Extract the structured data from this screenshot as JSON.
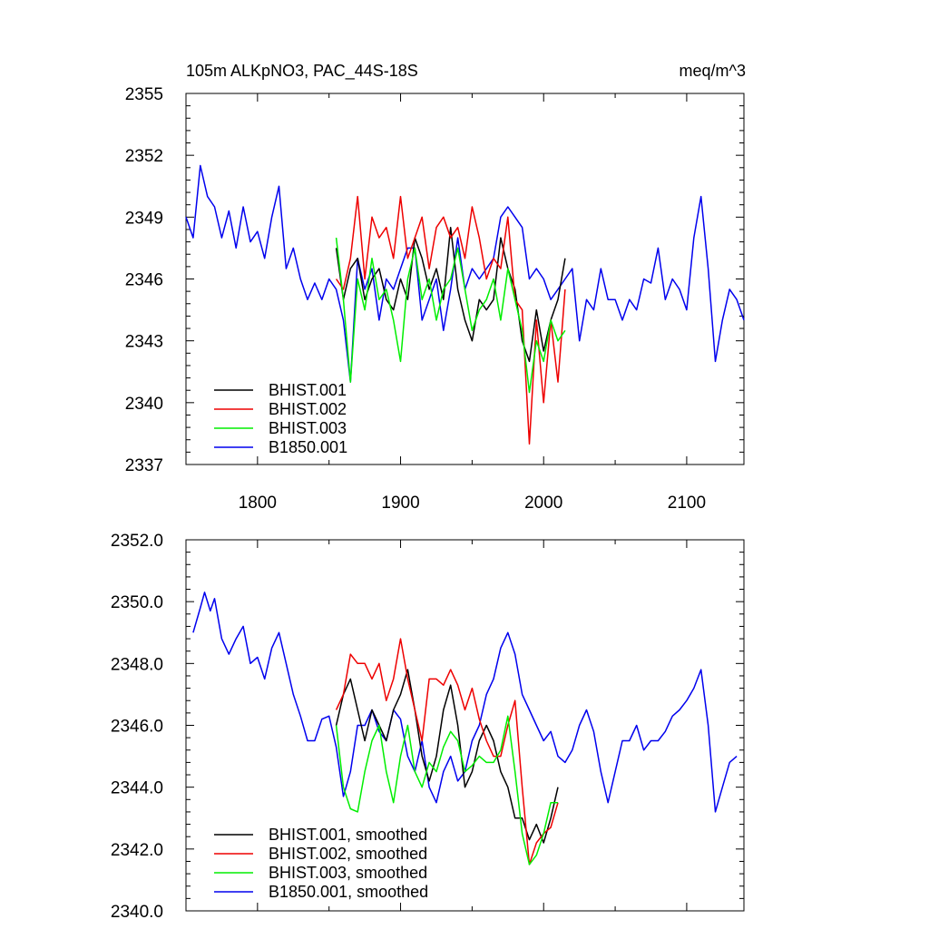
{
  "chart_data": [
    {
      "type": "line",
      "title_left": "105m ALKpNO3, PAC_44S-18S",
      "title_right": "meq/m^3",
      "xlabel": "",
      "ylabel": "",
      "xlim": [
        1750,
        2140
      ],
      "ylim": [
        2337,
        2355
      ],
      "xticks": [
        1800,
        1900,
        2000,
        2100
      ],
      "yticks": [
        2337,
        2340,
        2343,
        2346,
        2349,
        2352,
        2355
      ],
      "x_tick_labels_shown": true,
      "ytick_decimals": 0,
      "legend_position": "bottom-left",
      "series": [
        {
          "name": "B1850.001",
          "color": "#0000ee",
          "x": [
            1750,
            1755,
            1760,
            1765,
            1770,
            1775,
            1780,
            1785,
            1790,
            1795,
            1800,
            1805,
            1810,
            1815,
            1820,
            1825,
            1830,
            1835,
            1840,
            1845,
            1850,
            1855,
            1860,
            1865,
            1870,
            1875,
            1880,
            1885,
            1890,
            1895,
            1900,
            1905,
            1910,
            1915,
            1920,
            1925,
            1930,
            1935,
            1940,
            1945,
            1950,
            1955,
            1960,
            1965,
            1970,
            1975,
            1980,
            1985,
            1990,
            1995,
            2000,
            2005,
            2010,
            2015,
            2020,
            2025,
            2030,
            2035,
            2040,
            2045,
            2050,
            2055,
            2060,
            2065,
            2070,
            2075,
            2080,
            2085,
            2090,
            2095,
            2100,
            2105,
            2110,
            2115,
            2120,
            2125,
            2130,
            2135,
            2140
          ],
          "values": [
            2349,
            2348,
            2351.5,
            2350,
            2349.5,
            2348,
            2349.3,
            2347.5,
            2349.5,
            2347.8,
            2348.3,
            2347,
            2349,
            2350.5,
            2346.5,
            2347.5,
            2346,
            2345,
            2345.8,
            2345,
            2346,
            2345.5,
            2344,
            2341,
            2347,
            2345.5,
            2346.5,
            2344,
            2346,
            2345.5,
            2346.5,
            2347.5,
            2347.5,
            2344,
            2345,
            2346,
            2343.5,
            2345.5,
            2348,
            2345.5,
            2346.5,
            2346,
            2346.5,
            2347,
            2349,
            2349.5,
            2349,
            2348.5,
            2346,
            2346.5,
            2346,
            2345,
            2345.5,
            2346,
            2346.5,
            2343,
            2345,
            2344.5,
            2346.5,
            2345,
            2345,
            2344,
            2345,
            2344.5,
            2346,
            2345.8,
            2347.5,
            2345,
            2346,
            2345.5,
            2344.5,
            2348,
            2350,
            2346.5,
            2342,
            2344,
            2345.5,
            2345,
            2344
          ]
        },
        {
          "name": "BHIST.001",
          "color": "#000000",
          "x": [
            1855,
            1860,
            1865,
            1870,
            1875,
            1880,
            1885,
            1890,
            1895,
            1900,
            1905,
            1910,
            1915,
            1920,
            1925,
            1930,
            1935,
            1940,
            1945,
            1950,
            1955,
            1960,
            1965,
            1970,
            1975,
            1980,
            1985,
            1990,
            1995,
            2000,
            2005,
            2010,
            2015
          ],
          "values": [
            2347.5,
            2345,
            2346.5,
            2347,
            2345,
            2346,
            2346.5,
            2345,
            2344.5,
            2346,
            2345,
            2348,
            2347,
            2345.5,
            2346.5,
            2345,
            2348.5,
            2345.5,
            2344,
            2343,
            2345,
            2344.5,
            2345,
            2348,
            2346.5,
            2345.5,
            2343,
            2342,
            2344.5,
            2342.5,
            2344,
            2345,
            2347
          ]
        },
        {
          "name": "BHIST.002",
          "color": "#ee0000",
          "x": [
            1855,
            1860,
            1865,
            1870,
            1875,
            1880,
            1885,
            1890,
            1895,
            1900,
            1905,
            1910,
            1915,
            1920,
            1925,
            1930,
            1935,
            1940,
            1945,
            1950,
            1955,
            1960,
            1965,
            1970,
            1975,
            1980,
            1985,
            1990,
            1995,
            2000,
            2005,
            2010,
            2015
          ],
          "values": [
            2346,
            2345.5,
            2347,
            2350,
            2346,
            2349,
            2348,
            2348.5,
            2347,
            2350,
            2347,
            2348,
            2349,
            2346.5,
            2348.5,
            2349,
            2348,
            2348.5,
            2347,
            2349.5,
            2348,
            2346,
            2347,
            2346.5,
            2349,
            2345,
            2344.5,
            2338,
            2344,
            2340,
            2344,
            2341,
            2345.5
          ]
        },
        {
          "name": "BHIST.003",
          "color": "#00ee00",
          "x": [
            1855,
            1860,
            1865,
            1870,
            1875,
            1880,
            1885,
            1890,
            1895,
            1900,
            1905,
            1910,
            1915,
            1920,
            1925,
            1930,
            1935,
            1940,
            1945,
            1950,
            1955,
            1960,
            1965,
            1970,
            1975,
            1980,
            1985,
            1990,
            1995,
            2000,
            2005,
            2010,
            2015
          ],
          "values": [
            2348,
            2345,
            2341,
            2346,
            2344.5,
            2347,
            2345,
            2345.5,
            2344,
            2342,
            2346,
            2347.5,
            2345,
            2346,
            2344,
            2345.5,
            2346,
            2347.5,
            2345.5,
            2343.5,
            2344.5,
            2345,
            2346,
            2344,
            2346.5,
            2345,
            2343.5,
            2340.5,
            2343,
            2342,
            2344,
            2343,
            2343.5
          ]
        }
      ]
    },
    {
      "type": "line",
      "xlabel": "",
      "ylabel": "",
      "xlim": [
        1750,
        2140
      ],
      "ylim": [
        2340,
        2352
      ],
      "xticks": [
        1800,
        1900,
        2000,
        2100
      ],
      "yticks": [
        2340,
        2342,
        2344,
        2346,
        2348,
        2350,
        2352
      ],
      "x_tick_labels_shown": false,
      "ytick_decimals": 1,
      "legend_position": "bottom-left",
      "series": [
        {
          "name": "B1850.001, smoothed",
          "color": "#0000ee",
          "x": [
            1755,
            1760,
            1763,
            1767,
            1770,
            1775,
            1780,
            1785,
            1790,
            1795,
            1800,
            1805,
            1810,
            1815,
            1820,
            1825,
            1830,
            1835,
            1840,
            1845,
            1850,
            1855,
            1860,
            1865,
            1870,
            1875,
            1880,
            1885,
            1890,
            1895,
            1900,
            1905,
            1910,
            1915,
            1920,
            1925,
            1930,
            1935,
            1940,
            1945,
            1950,
            1955,
            1960,
            1965,
            1970,
            1975,
            1980,
            1985,
            1990,
            1995,
            2000,
            2005,
            2010,
            2015,
            2020,
            2025,
            2030,
            2035,
            2040,
            2045,
            2050,
            2055,
            2060,
            2065,
            2070,
            2075,
            2080,
            2085,
            2090,
            2095,
            2100,
            2105,
            2110,
            2115,
            2120,
            2125,
            2130,
            2135
          ],
          "values": [
            2349,
            2349.8,
            2350.3,
            2349.7,
            2350.1,
            2348.8,
            2348.3,
            2348.8,
            2349.2,
            2348,
            2348.2,
            2347.5,
            2348.5,
            2349,
            2348,
            2347,
            2346.3,
            2345.5,
            2345.5,
            2346.2,
            2346.3,
            2345.3,
            2343.7,
            2344.5,
            2346,
            2346,
            2346.5,
            2345.8,
            2345.5,
            2346.5,
            2346.2,
            2345,
            2344.5,
            2345.5,
            2344,
            2343.5,
            2344.5,
            2345,
            2344.2,
            2344.5,
            2345.5,
            2346,
            2347,
            2347.5,
            2348.5,
            2349,
            2348.3,
            2347,
            2346.5,
            2346,
            2345.5,
            2345.8,
            2345,
            2344.8,
            2345.2,
            2346,
            2346.5,
            2345.8,
            2344.5,
            2343.5,
            2344.5,
            2345.5,
            2345.5,
            2346,
            2345.2,
            2345.5,
            2345.5,
            2345.8,
            2346.3,
            2346.5,
            2346.8,
            2347.2,
            2347.8,
            2346,
            2343.2,
            2344,
            2344.8,
            2345
          ]
        },
        {
          "name": "BHIST.001, smoothed",
          "color": "#000000",
          "x": [
            1855,
            1860,
            1865,
            1870,
            1875,
            1880,
            1885,
            1890,
            1895,
            1900,
            1905,
            1910,
            1915,
            1920,
            1925,
            1930,
            1935,
            1940,
            1945,
            1950,
            1955,
            1960,
            1965,
            1970,
            1975,
            1980,
            1985,
            1990,
            1995,
            2000,
            2005,
            2010
          ],
          "values": [
            2346,
            2347,
            2347.5,
            2346.5,
            2345.5,
            2346.5,
            2346,
            2345.5,
            2346.5,
            2347,
            2347.8,
            2346.5,
            2345,
            2344.2,
            2345,
            2346.5,
            2347.3,
            2346,
            2344,
            2344.5,
            2345.5,
            2346,
            2345.5,
            2344.5,
            2344,
            2343,
            2343,
            2342.3,
            2342.8,
            2342.2,
            2343,
            2344
          ]
        },
        {
          "name": "BHIST.002, smoothed",
          "color": "#ee0000",
          "x": [
            1855,
            1860,
            1865,
            1870,
            1875,
            1880,
            1885,
            1890,
            1895,
            1900,
            1905,
            1910,
            1915,
            1920,
            1925,
            1930,
            1935,
            1940,
            1945,
            1950,
            1955,
            1960,
            1965,
            1970,
            1975,
            1980,
            1985,
            1990,
            1995,
            2000,
            2005,
            2010
          ],
          "values": [
            2346.5,
            2347,
            2348.3,
            2348,
            2348,
            2347.5,
            2348,
            2346.8,
            2347.5,
            2348.8,
            2347.5,
            2346.5,
            2345.5,
            2347.5,
            2347.5,
            2347.3,
            2347.8,
            2347.3,
            2346.5,
            2347.2,
            2346.2,
            2345.5,
            2345,
            2345,
            2346,
            2346.8,
            2344,
            2341.5,
            2342.2,
            2342.5,
            2342.7,
            2343.5
          ]
        },
        {
          "name": "BHIST.003, smoothed",
          "color": "#00ee00",
          "x": [
            1855,
            1860,
            1865,
            1870,
            1875,
            1880,
            1885,
            1890,
            1895,
            1900,
            1905,
            1910,
            1915,
            1920,
            1925,
            1930,
            1935,
            1940,
            1945,
            1950,
            1955,
            1960,
            1965,
            1970,
            1975,
            1980,
            1985,
            1990,
            1995,
            2000,
            2005,
            2010
          ],
          "values": [
            2346,
            2344,
            2343.3,
            2343.2,
            2344.5,
            2345.5,
            2346,
            2344.5,
            2343.5,
            2345,
            2346,
            2344.5,
            2344,
            2344.8,
            2344.5,
            2345.3,
            2345.8,
            2345.5,
            2344.5,
            2344.7,
            2345,
            2344.8,
            2344.8,
            2345.2,
            2346.3,
            2344.5,
            2342.5,
            2341.5,
            2341.8,
            2342.5,
            2343.5,
            2343.5
          ]
        }
      ]
    }
  ]
}
